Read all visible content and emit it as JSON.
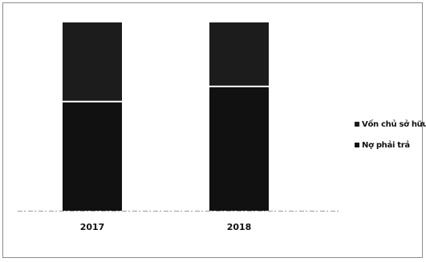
{
  "chart_data": {
    "type": "bar",
    "stacked": true,
    "percent_stacked": true,
    "categories": [
      "2017",
      "2018"
    ],
    "series": [
      {
        "name": "Nợ phải trả",
        "values": [
          58,
          66
        ],
        "color": "#111111"
      },
      {
        "name": "Vốn chủ sở hữu",
        "values": [
          42,
          34
        ],
        "color": "#1c1c1c"
      }
    ],
    "ylim": [
      0,
      100
    ],
    "grid": false,
    "legend_position": "right",
    "title": "",
    "xlabel": "",
    "ylabel": ""
  }
}
